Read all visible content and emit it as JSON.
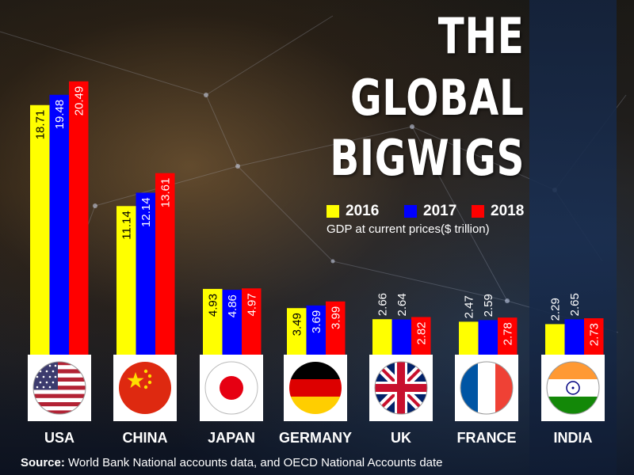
{
  "title_lines": [
    "THE",
    "GLOBAL",
    "BIGWIGS"
  ],
  "subtitle": "GDP at current prices($ trillion)",
  "source_label": "Source:",
  "source_text": " World Bank National accounts data, and OECD National Accounts date",
  "colors": {
    "2016": "#ffff00",
    "2017": "#0000ff",
    "2018": "#ff0000"
  },
  "chart_data": {
    "type": "bar",
    "title": "THE GLOBAL BIGWIGS",
    "subtitle": "GDP at current prices($ trillion)",
    "categories": [
      "USA",
      "CHINA",
      "JAPAN",
      "GERMANY",
      "UK",
      "FRANCE",
      "INDIA"
    ],
    "series": [
      {
        "name": "2016",
        "color": "#ffff00",
        "values": [
          18.71,
          11.14,
          4.93,
          3.49,
          2.66,
          2.47,
          2.29
        ]
      },
      {
        "name": "2017",
        "color": "#0000ff",
        "values": [
          19.48,
          12.14,
          4.86,
          3.69,
          2.64,
          2.59,
          2.65
        ]
      },
      {
        "name": "2018",
        "color": "#ff0000",
        "values": [
          20.49,
          13.61,
          4.97,
          3.99,
          2.82,
          2.78,
          2.73
        ]
      }
    ],
    "legend_position": "top-right",
    "grid": false,
    "flags": [
      "usa-flag-icon",
      "china-flag-icon",
      "japan-flag-icon",
      "germany-flag-icon",
      "uk-flag-icon",
      "france-flag-icon",
      "india-flag-icon"
    ]
  }
}
